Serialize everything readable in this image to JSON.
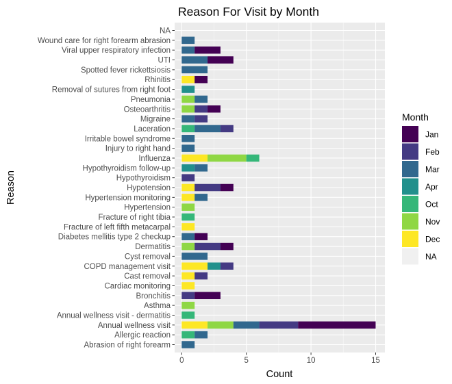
{
  "chart_data": {
    "type": "bar",
    "orientation": "horizontal",
    "stacked": true,
    "title": "Reason For Visit by Month",
    "xlabel": "Count",
    "ylabel": "Reason",
    "xlim": [
      0,
      15.8
    ],
    "xticks": [
      0,
      5,
      10,
      15
    ],
    "grid": true,
    "legend_position": "right",
    "legend_title": "Month",
    "background": "#EBEBEB",
    "categories": [
      "NA",
      "Wound care for right forearm abrasion",
      "Viral upper respiratory infection",
      "UTI",
      "Spotted fever rickettsiosis",
      "Rhinitis",
      "Removal of sutures from right foot",
      "Pneumonia",
      "Osteoarthritis",
      "Migraine",
      "Laceration",
      "Irritable bowel syndrome",
      "Injury to right hand",
      "Influenza",
      "Hypothyroidism follow-up",
      "Hypothyroidism",
      "Hypotension",
      "Hypertension monitoring",
      "Hypertension",
      "Fracture of right tibia",
      "Fracture of left fifth metacarpal",
      "Diabetes mellitis type 2 checkup",
      "Dermatitis",
      "Cyst removal",
      "COPD management visit",
      "Cast removal",
      "Cardiac monitoring",
      "Bronchitis",
      "Asthma",
      "Annual wellness visit - dermatitis",
      "Annual wellness visit",
      "Allergic reaction",
      "Abrasion of right forearm"
    ],
    "series": [
      {
        "name": "Jan",
        "color": "#440154",
        "values": [
          0,
          0,
          2,
          2,
          0,
          1,
          0,
          0,
          1,
          0,
          0,
          0,
          0,
          0,
          0,
          0,
          1,
          0,
          0,
          0,
          0,
          1,
          1,
          0,
          0,
          0,
          0,
          2,
          0,
          0,
          6,
          0,
          0
        ]
      },
      {
        "name": "Feb",
        "color": "#443A83",
        "values": [
          0,
          0,
          0,
          0,
          0,
          0,
          0,
          0,
          1,
          1,
          1,
          0,
          0,
          0,
          0,
          1,
          2,
          0,
          0,
          0,
          0,
          0,
          2,
          0,
          1,
          1,
          0,
          1,
          0,
          0,
          3,
          0,
          0
        ]
      },
      {
        "name": "Mar",
        "color": "#31688E",
        "values": [
          0,
          1,
          1,
          2,
          2,
          0,
          0,
          1,
          0,
          1,
          2,
          1,
          1,
          0,
          1,
          0,
          0,
          1,
          0,
          0,
          0,
          1,
          0,
          2,
          0,
          0,
          0,
          0,
          0,
          0,
          2,
          1,
          1
        ]
      },
      {
        "name": "Apr",
        "color": "#21908C",
        "values": [
          0,
          0,
          0,
          0,
          0,
          0,
          1,
          0,
          0,
          0,
          0,
          0,
          0,
          0,
          1,
          0,
          0,
          0,
          0,
          0,
          0,
          0,
          0,
          0,
          1,
          0,
          0,
          0,
          0,
          0,
          0,
          0,
          0
        ]
      },
      {
        "name": "Oct",
        "color": "#35B779",
        "values": [
          0,
          0,
          0,
          0,
          0,
          0,
          0,
          0,
          0,
          0,
          1,
          0,
          0,
          1,
          0,
          0,
          0,
          0,
          0,
          1,
          0,
          0,
          0,
          0,
          0,
          0,
          0,
          0,
          0,
          1,
          0,
          1,
          0
        ]
      },
      {
        "name": "Nov",
        "color": "#8FD744",
        "values": [
          0,
          0,
          0,
          0,
          0,
          0,
          0,
          1,
          1,
          0,
          0,
          0,
          0,
          3,
          0,
          0,
          0,
          0,
          1,
          0,
          0,
          0,
          1,
          0,
          0,
          0,
          0,
          0,
          1,
          0,
          2,
          0,
          0
        ]
      },
      {
        "name": "Dec",
        "color": "#FDE725",
        "values": [
          0,
          0,
          0,
          0,
          0,
          1,
          0,
          0,
          0,
          0,
          0,
          0,
          0,
          2,
          0,
          0,
          1,
          1,
          0,
          0,
          1,
          0,
          0,
          0,
          2,
          1,
          1,
          0,
          0,
          0,
          2,
          0,
          0
        ]
      },
      {
        "name": "NA",
        "color": "#F0F0F0",
        "values": [
          0,
          0,
          0,
          0,
          0,
          0,
          0,
          0,
          0,
          0,
          0,
          0,
          0,
          0,
          0,
          0,
          0,
          0,
          0,
          0,
          0,
          0,
          0,
          0,
          0,
          0,
          0,
          0,
          0,
          0,
          0,
          0,
          0
        ]
      }
    ],
    "stack_order": [
      "Dec",
      "Nov",
      "Oct",
      "Apr",
      "Mar",
      "Feb",
      "Jan",
      "NA"
    ]
  }
}
